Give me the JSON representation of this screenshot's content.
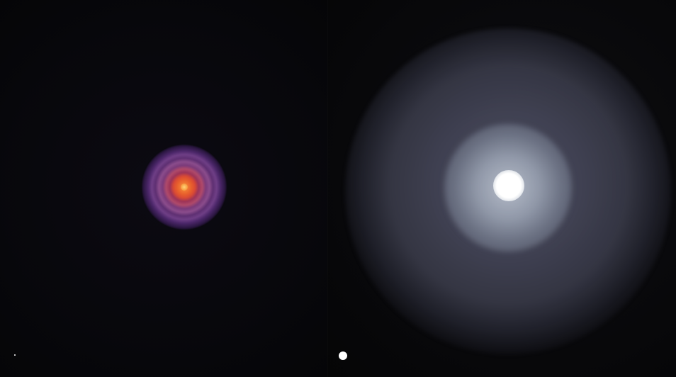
{
  "image": {
    "panels": [
      {
        "id": "left",
        "objects": [
          {
            "name": "ringed-disk",
            "colors": [
              "#f3a24a",
              "#e8602c",
              "#9c3358",
              "#7a3a7a",
              "#4c276a"
            ]
          },
          {
            "name": "scale-marker-small",
            "color": "#ffffff"
          }
        ]
      },
      {
        "id": "right",
        "objects": [
          {
            "name": "diffuse-halo",
            "colors": [
              "#787a96",
              "#a0aabb",
              "#ffffff"
            ]
          },
          {
            "name": "scale-marker-large",
            "color": "#ffffff"
          }
        ]
      }
    ],
    "background": "#060608"
  }
}
